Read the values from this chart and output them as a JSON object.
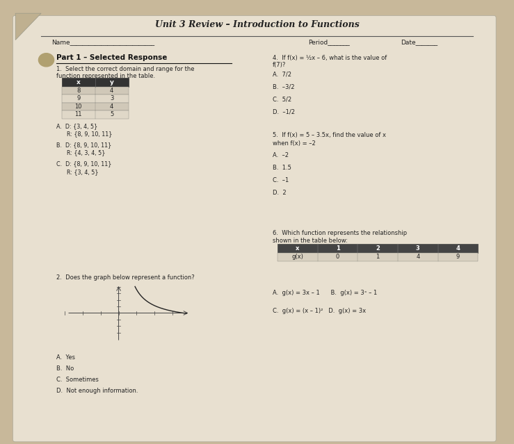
{
  "title": "Unit 3 Review – Introduction to Functions",
  "bg_color": "#c8b89a",
  "paper_color": "#e8e0d0",
  "part1_title": "Part 1 – Selected Response",
  "table1_headers": [
    "x",
    "y"
  ],
  "table1_rows": [
    [
      "8",
      "4"
    ],
    [
      "9",
      "3"
    ],
    [
      "10",
      "4"
    ],
    [
      "11",
      "5"
    ]
  ],
  "q1_options_a": "A.  D: {3, 4, 5}",
  "q1_options_a2": "      R: {8, 9, 10, 11}",
  "q1_options_b": "B.  D: {8, 9, 10, 11}",
  "q1_options_b2": "      R: {4, 3, 4, 5}",
  "q1_options_c": "C.  D: {8, 9, 10, 11}",
  "q1_options_c2": "      R: {3, 4, 5}",
  "q2_text": "2.  Does the graph below represent a function?",
  "q2_options": [
    "A.  Yes",
    "B.  No",
    "C.  Sometimes",
    "D.  Not enough information."
  ],
  "q4_line1": "4.  If f(x) = ½x – 6, what is the value of",
  "q4_line2": "f(7)?",
  "q4_options": [
    "A.  7/2",
    "B.  –3/2",
    "C.  5/2",
    "D.  –1/2"
  ],
  "q5_line1": "5.  If f(x) = 5 – 3.5x, find the value of x",
  "q5_line2": "when f(x) = –2",
  "q5_options": [
    "A.  –2",
    "B.  1.5",
    "C.  –1",
    "D.  2"
  ],
  "q6_line1": "6.  Which function represents the relationship",
  "q6_line2": "shown in the table below:",
  "table2_headers": [
    "x",
    "1",
    "2",
    "3",
    "4"
  ],
  "table2_row": [
    "g(x)",
    "0",
    "1",
    "4",
    "9"
  ],
  "q6_opt_a": "A.  g(x) = 3x – 1      B.  g(x) = 3ˣ – 1",
  "q6_opt_c": "C.  g(x) = (x – 1)²   D.  g(x) = 3x"
}
